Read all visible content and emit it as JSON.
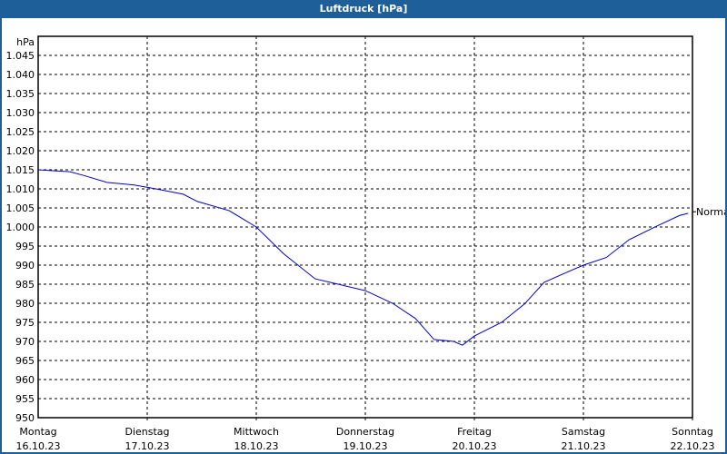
{
  "window": {
    "title": "Luftdruck [hPa]"
  },
  "colors": {
    "frame": "#1f5f99",
    "line": "#0000c8",
    "grid": "#000000"
  },
  "chart_data": {
    "type": "line",
    "title": "Luftdruck [hPa]",
    "ylabel": "hPa",
    "xlabel": "",
    "ylim": [
      950,
      1050
    ],
    "yticks": [
      950,
      955,
      960,
      965,
      970,
      975,
      980,
      985,
      990,
      995,
      1000,
      1005,
      1010,
      1015,
      1020,
      1025,
      1030,
      1035,
      1040,
      1045
    ],
    "ytick_labels": [
      "950",
      "955",
      "960",
      "965",
      "970",
      "975",
      "980",
      "985",
      "990",
      "995",
      "1.000",
      "1.005",
      "1.010",
      "1.015",
      "1.020",
      "1.025",
      "1.030",
      "1.035",
      "1.040",
      "1.045"
    ],
    "xticks": [
      {
        "day": "Montag",
        "date": "16.10.23",
        "pos": 0
      },
      {
        "day": "Dienstag",
        "date": "17.10.23",
        "pos": 1
      },
      {
        "day": "Mittwoch",
        "date": "18.10.23",
        "pos": 2
      },
      {
        "day": "Donnerstag",
        "date": "19.10.23",
        "pos": 3
      },
      {
        "day": "Freitag",
        "date": "20.10.23",
        "pos": 4
      },
      {
        "day": "Samstag",
        "date": "21.10.23",
        "pos": 5
      },
      {
        "day": "Sonntag",
        "date": "22.10.23",
        "pos": 6
      }
    ],
    "xlim_days": [
      0,
      7
    ],
    "grid": true,
    "annotation": {
      "label": "Normal",
      "value": 1004
    },
    "series": [
      {
        "name": "Luftdruck",
        "x_days": [
          0,
          0.29,
          0.42,
          0.63,
          0.88,
          1.08,
          1.33,
          1.46,
          1.75,
          2.0,
          2.25,
          2.54,
          2.75,
          3.0,
          3.25,
          3.46,
          3.63,
          3.81,
          3.89,
          4.0,
          4.25,
          4.46,
          4.64,
          4.79,
          5.0,
          5.21,
          5.42,
          5.67,
          5.88,
          5.96
        ],
        "values": [
          1015,
          1014.5,
          1013.5,
          1011.7,
          1011,
          1010,
          1008.6,
          1006.7,
          1004.3,
          1000,
          993,
          986.4,
          985,
          983.3,
          980,
          976,
          970.5,
          970,
          969,
          971.4,
          975,
          979.8,
          985.5,
          987.4,
          990,
          992,
          996.7,
          1000.2,
          1003,
          1003.6
        ]
      }
    ]
  }
}
